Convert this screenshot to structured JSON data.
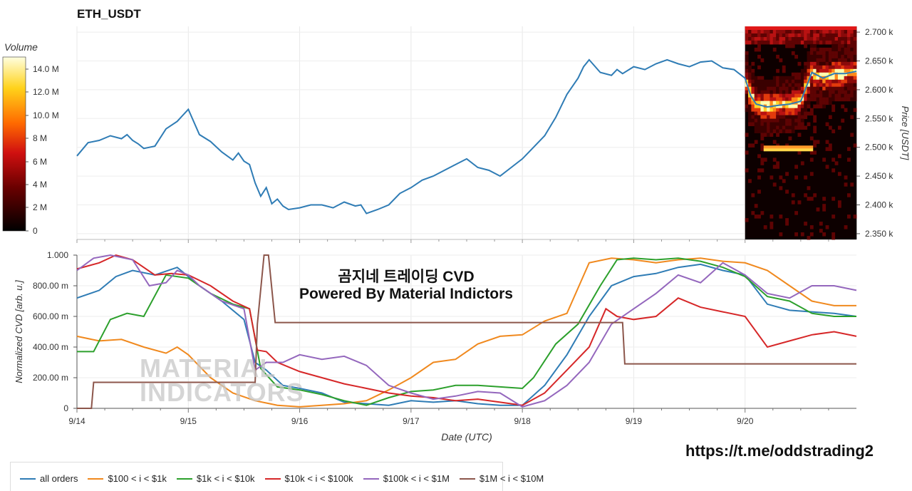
{
  "header": {
    "title": "ETH_USDT"
  },
  "colorbar": {
    "title": "Volume",
    "ticks": [
      "14.0 M",
      "12.0 M",
      "10.0 M",
      "8 M",
      "6 M",
      "4 M",
      "2 M",
      "0"
    ]
  },
  "overlay": {
    "line1": "곰지네 트레이딩 CVD",
    "line2": "Powered By Material Indictors"
  },
  "watermark": {
    "line1": "MATERIAL",
    "line2": "INDICATORS"
  },
  "footer": {
    "link": "https://t.me/oddstrading2"
  },
  "chart_data": [
    {
      "type": "line",
      "title": "ETH_USDT",
      "ylabel": "Price [USDT]",
      "yticks": [
        "2.700 k",
        "2.650 k",
        "2.600 k",
        "2.550 k",
        "2.500 k",
        "2.450 k",
        "2.400 k",
        "2.350 k"
      ],
      "ylim": [
        2340,
        2710
      ],
      "xlim": [
        0,
        7
      ],
      "grid": true,
      "series": [
        {
          "name": "Price",
          "color": "#2f7cb5",
          "x": [
            0,
            0.1,
            0.2,
            0.3,
            0.4,
            0.45,
            0.5,
            0.55,
            0.6,
            0.7,
            0.8,
            0.9,
            1.0,
            1.1,
            1.2,
            1.3,
            1.4,
            1.45,
            1.5,
            1.55,
            1.6,
            1.65,
            1.7,
            1.75,
            1.8,
            1.85,
            1.9,
            2.0,
            2.1,
            2.2,
            2.3,
            2.4,
            2.5,
            2.55,
            2.6,
            2.7,
            2.8,
            2.9,
            3.0,
            3.1,
            3.2,
            3.3,
            3.4,
            3.5,
            3.6,
            3.7,
            3.8,
            3.9,
            4.0,
            4.1,
            4.2,
            4.3,
            4.4,
            4.5,
            4.55,
            4.6,
            4.7,
            4.8,
            4.85,
            4.9,
            5.0,
            5.1,
            5.2,
            5.3,
            5.4,
            5.5,
            5.6,
            5.7,
            5.8,
            5.9,
            6.0,
            6.05,
            6.1,
            6.2,
            6.3,
            6.4,
            6.5,
            6.6,
            6.7,
            6.8,
            6.9,
            7.0
          ],
          "values": [
            2485,
            2508,
            2512,
            2520,
            2515,
            2522,
            2512,
            2506,
            2498,
            2502,
            2532,
            2545,
            2566,
            2522,
            2510,
            2492,
            2478,
            2490,
            2476,
            2470,
            2438,
            2415,
            2430,
            2402,
            2410,
            2398,
            2392,
            2395,
            2400,
            2400,
            2395,
            2405,
            2398,
            2400,
            2385,
            2392,
            2400,
            2420,
            2430,
            2443,
            2450,
            2460,
            2470,
            2480,
            2465,
            2460,
            2450,
            2465,
            2480,
            2500,
            2520,
            2552,
            2592,
            2620,
            2640,
            2652,
            2630,
            2625,
            2635,
            2628,
            2640,
            2635,
            2645,
            2652,
            2645,
            2640,
            2648,
            2650,
            2638,
            2635,
            2620,
            2590,
            2575,
            2570,
            2573,
            2575,
            2580,
            2630,
            2620,
            2628,
            2628,
            2632
          ]
        }
      ],
      "heatmap": {
        "x_from": 6.0,
        "x_to": 7.0,
        "colorbar_max": "14.0 M"
      }
    },
    {
      "type": "line",
      "xlabel": "Date (UTC)",
      "ylabel": "Normalized CVD [arb. u.]",
      "categories": [
        "9/14",
        "9/15",
        "9/16",
        "9/17",
        "9/18",
        "9/19",
        "9/20"
      ],
      "yticks": [
        "1.000",
        "800.00 m",
        "600.00 m",
        "400.00 m",
        "200.00 m",
        "0"
      ],
      "ylim": [
        0,
        1
      ],
      "xlim": [
        0,
        7
      ],
      "legend": "bottom",
      "series": [
        {
          "name": "all orders",
          "color": "#2f7cb5",
          "x": [
            0,
            0.2,
            0.35,
            0.5,
            0.7,
            0.9,
            1.0,
            1.1,
            1.3,
            1.5,
            1.6,
            1.7,
            1.85,
            2.0,
            2.2,
            2.4,
            2.6,
            2.8,
            3.0,
            3.2,
            3.4,
            3.6,
            3.8,
            4.0,
            4.2,
            4.4,
            4.6,
            4.8,
            5.0,
            5.2,
            5.4,
            5.6,
            5.8,
            6.0,
            6.2,
            6.4,
            6.6,
            6.8,
            7.0
          ],
          "values": [
            0.72,
            0.77,
            0.86,
            0.9,
            0.87,
            0.92,
            0.86,
            0.8,
            0.7,
            0.58,
            0.3,
            0.25,
            0.15,
            0.13,
            0.1,
            0.04,
            0.03,
            0.02,
            0.05,
            0.04,
            0.05,
            0.03,
            0.02,
            0.02,
            0.15,
            0.35,
            0.6,
            0.8,
            0.86,
            0.88,
            0.92,
            0.94,
            0.9,
            0.87,
            0.68,
            0.64,
            0.63,
            0.62,
            0.6
          ]
        },
        {
          "name": "$100 < i < $1k",
          "color": "#f0891e",
          "x": [
            0,
            0.2,
            0.4,
            0.6,
            0.8,
            0.9,
            1.0,
            1.2,
            1.4,
            1.6,
            1.8,
            2.0,
            2.2,
            2.4,
            2.6,
            2.8,
            3.0,
            3.2,
            3.4,
            3.6,
            3.8,
            4.0,
            4.2,
            4.4,
            4.6,
            4.8,
            5.0,
            5.2,
            5.4,
            5.6,
            5.8,
            6.0,
            6.2,
            6.4,
            6.6,
            6.8,
            7.0
          ],
          "values": [
            0.47,
            0.44,
            0.45,
            0.4,
            0.36,
            0.4,
            0.35,
            0.2,
            0.1,
            0.05,
            0.02,
            0.01,
            0.02,
            0.03,
            0.05,
            0.12,
            0.2,
            0.3,
            0.32,
            0.42,
            0.47,
            0.48,
            0.57,
            0.62,
            0.95,
            0.98,
            0.97,
            0.95,
            0.97,
            0.98,
            0.96,
            0.95,
            0.9,
            0.8,
            0.7,
            0.67,
            0.67
          ]
        },
        {
          "name": "$1k < i < $10k",
          "color": "#2ca02c",
          "x": [
            0,
            0.15,
            0.3,
            0.45,
            0.6,
            0.8,
            1.0,
            1.2,
            1.4,
            1.55,
            1.65,
            1.8,
            2.0,
            2.2,
            2.4,
            2.6,
            2.8,
            3.0,
            3.2,
            3.4,
            3.6,
            3.8,
            4.0,
            4.1,
            4.3,
            4.5,
            4.7,
            4.85,
            5.0,
            5.2,
            5.4,
            5.6,
            5.8,
            6.0,
            6.2,
            6.4,
            6.6,
            6.8,
            7.0
          ],
          "values": [
            0.37,
            0.37,
            0.58,
            0.62,
            0.6,
            0.87,
            0.85,
            0.75,
            0.68,
            0.65,
            0.26,
            0.14,
            0.12,
            0.09,
            0.05,
            0.02,
            0.07,
            0.11,
            0.12,
            0.15,
            0.15,
            0.14,
            0.13,
            0.2,
            0.42,
            0.55,
            0.8,
            0.97,
            0.98,
            0.97,
            0.98,
            0.96,
            0.92,
            0.86,
            0.73,
            0.7,
            0.62,
            0.6,
            0.6
          ]
        },
        {
          "name": "$10k < i < $100k",
          "color": "#d62728",
          "x": [
            0,
            0.2,
            0.35,
            0.5,
            0.7,
            0.85,
            1.0,
            1.2,
            1.4,
            1.55,
            1.62,
            1.7,
            1.8,
            2.0,
            2.2,
            2.4,
            2.6,
            2.8,
            3.0,
            3.2,
            3.4,
            3.6,
            3.8,
            4.0,
            4.2,
            4.4,
            4.6,
            4.75,
            4.85,
            5.0,
            5.2,
            5.4,
            5.6,
            5.8,
            6.0,
            6.2,
            6.4,
            6.6,
            6.8,
            7.0
          ],
          "values": [
            0.91,
            0.95,
            1.0,
            0.97,
            0.87,
            0.88,
            0.87,
            0.8,
            0.7,
            0.65,
            0.38,
            0.37,
            0.3,
            0.24,
            0.2,
            0.16,
            0.13,
            0.1,
            0.08,
            0.07,
            0.05,
            0.06,
            0.04,
            0.02,
            0.1,
            0.25,
            0.4,
            0.65,
            0.6,
            0.58,
            0.6,
            0.72,
            0.66,
            0.63,
            0.6,
            0.4,
            0.44,
            0.48,
            0.5,
            0.47
          ]
        },
        {
          "name": "$100k < i < $1M",
          "color": "#9467bd",
          "x": [
            0,
            0.15,
            0.3,
            0.5,
            0.65,
            0.8,
            0.9,
            1.0,
            1.1,
            1.3,
            1.5,
            1.6,
            1.7,
            1.85,
            2.0,
            2.2,
            2.4,
            2.6,
            2.8,
            3.0,
            3.2,
            3.4,
            3.6,
            3.8,
            4.0,
            4.2,
            4.4,
            4.6,
            4.8,
            5.0,
            5.2,
            5.4,
            5.6,
            5.8,
            6.0,
            6.2,
            6.4,
            6.6,
            6.8,
            7.0
          ],
          "values": [
            0.9,
            0.98,
            1.0,
            0.97,
            0.8,
            0.82,
            0.9,
            0.87,
            0.8,
            0.7,
            0.65,
            0.25,
            0.3,
            0.3,
            0.35,
            0.32,
            0.34,
            0.28,
            0.15,
            0.1,
            0.06,
            0.08,
            0.11,
            0.1,
            0.01,
            0.05,
            0.15,
            0.3,
            0.55,
            0.65,
            0.75,
            0.87,
            0.82,
            0.95,
            0.87,
            0.75,
            0.72,
            0.8,
            0.8,
            0.77
          ]
        },
        {
          "name": "$1M < i < $10M",
          "color": "#8c564b",
          "x": [
            0,
            0.13,
            0.15,
            1.6,
            1.62,
            1.68,
            1.72,
            1.78,
            1.8,
            4.5,
            4.9,
            4.92,
            4.95,
            7.0
          ],
          "values": [
            0,
            0,
            0.17,
            0.17,
            0.55,
            1.0,
            1.0,
            0.56,
            0.56,
            0.56,
            0.56,
            0.29,
            0.29,
            0.29
          ]
        }
      ]
    }
  ]
}
